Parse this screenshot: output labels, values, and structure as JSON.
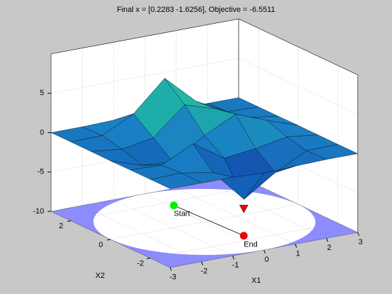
{
  "chart_data": {
    "type": "surface",
    "title": "Final x = [0.2283 -1.6256], Objective = -6.5511",
    "x": [
      -3,
      -2,
      -1,
      0,
      1,
      2,
      3
    ],
    "y": [
      -3,
      -2,
      -1,
      0,
      1,
      2,
      3
    ],
    "z": [
      [
        0,
        0,
        -0.03,
        -0.24,
        -0.11,
        0,
        0
      ],
      [
        0,
        0.05,
        -0.6,
        -4.76,
        -2.1,
        -0.06,
        0
      ],
      [
        -0.01,
        -0.13,
        1.85,
        -0.72,
        -0.27,
        0.5,
        0.01
      ],
      [
        -0.04,
        -1.33,
        -1.65,
        0.98,
        2.94,
        1.41,
        0.03
      ],
      [
        -0.01,
        -0.48,
        0.23,
        3.69,
        2.44,
        0.58,
        0.01
      ],
      [
        0,
        0.08,
        2.1,
        5.86,
        2.21,
        0.13,
        0
      ],
      [
        0,
        0.01,
        0.11,
        0.3,
        0.11,
        0.01,
        0
      ]
    ],
    "xlim": [
      -3,
      3
    ],
    "ylim": [
      -3,
      3
    ],
    "zlim": [
      -10,
      10
    ],
    "xticks": [
      -3,
      -2,
      -1,
      0,
      1,
      2,
      3
    ],
    "yticks": [
      -2,
      0,
      2
    ],
    "zticks": [
      -10,
      -5,
      0,
      5
    ],
    "xlabel": "X1",
    "ylabel": "X2",
    "grid": true,
    "colormap": [
      "#0b2a9e",
      "#1a80c4",
      "#26e28a"
    ],
    "points": [
      {
        "name": "Start",
        "x": 0.1,
        "y": 1.7,
        "color": "#00ee00"
      },
      {
        "name": "End",
        "x": 0.2283,
        "y": -1.6256,
        "z": -6.5511,
        "color": "#ee0000"
      }
    ]
  }
}
